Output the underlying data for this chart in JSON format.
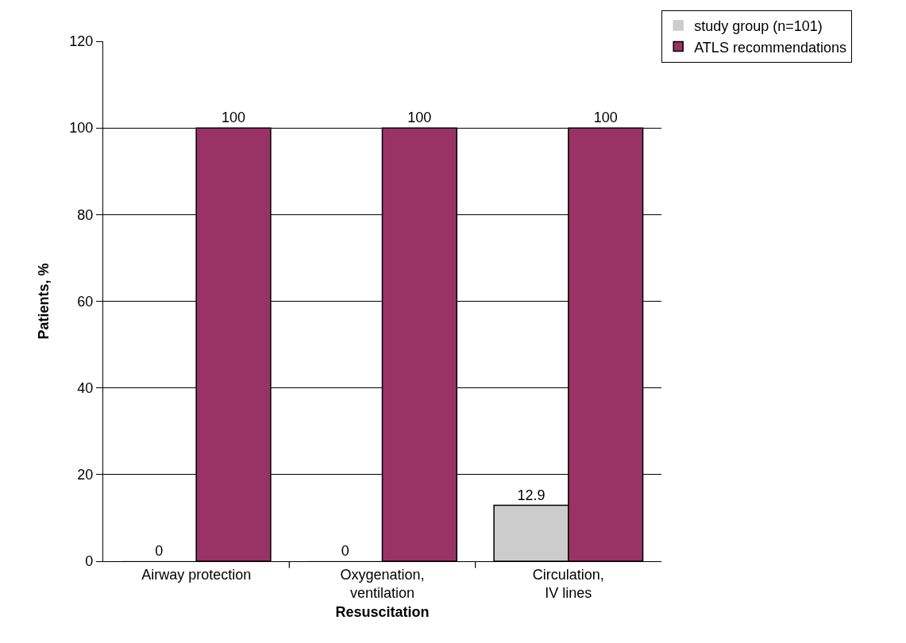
{
  "chart_data": {
    "type": "bar",
    "xlabel": "Resuscitation",
    "ylabel": "Patients, %",
    "categories": [
      "Airway protection",
      "Oxygenation,\nventilation",
      "Circulation,\nIV lines"
    ],
    "series": [
      {
        "name": "study group (n=101)",
        "color": "#cccccc",
        "values": [
          0,
          0,
          12.9
        ]
      },
      {
        "name": "ATLS recommendations",
        "color": "#993366",
        "values": [
          100,
          100,
          100
        ]
      }
    ],
    "ylim": [
      0,
      120
    ],
    "yticks": [
      0,
      20,
      40,
      60,
      80,
      100,
      120
    ],
    "grid": "y",
    "legend": "top right",
    "data_labels": true
  }
}
